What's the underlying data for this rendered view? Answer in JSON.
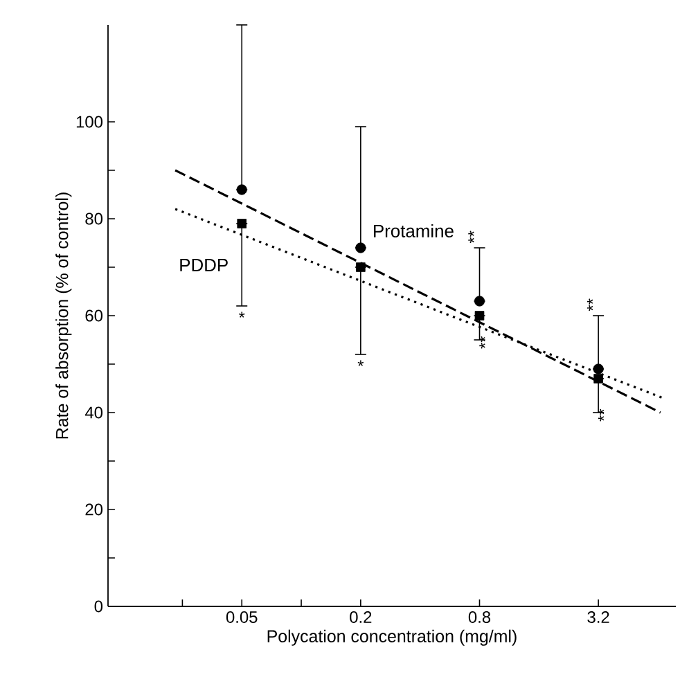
{
  "chart_data": {
    "type": "scatter",
    "xlabel": "Polycation concentration (mg/ml)",
    "ylabel": "Rate of absorption (% of control)",
    "log": "x",
    "xlim": [
      0.0105,
      7.9
    ],
    "ylim": [
      0,
      120
    ],
    "xticks": [
      {
        "value": 0.025,
        "label": null
      },
      0.05,
      {
        "value": 0.1,
        "label": null
      },
      0.2,
      0.8,
      3.2
    ],
    "yticks": [
      0,
      {
        "value": 10,
        "label": null
      },
      20,
      {
        "value": 30,
        "label": null
      },
      40,
      {
        "value": 50,
        "label": null
      },
      60,
      {
        "value": 70,
        "label": null
      },
      80,
      {
        "value": 90,
        "label": null
      },
      100
    ],
    "grid": false,
    "series": [
      {
        "name": "Protamine",
        "marker": "circle",
        "color": "#000000",
        "x": [
          0.05,
          0.2,
          0.8,
          3.2
        ],
        "values": [
          86,
          74,
          63,
          49
        ],
        "errors": [
          [
            86,
            120
          ],
          [
            74,
            99
          ],
          [
            63,
            74
          ],
          [
            49,
            60
          ]
        ]
      },
      {
        "name": "PDDP",
        "marker": "square",
        "color": "#000000",
        "x": [
          0.05,
          0.2,
          0.8,
          3.2
        ],
        "values": [
          79,
          70,
          60,
          47
        ],
        "errors": [
          [
            62,
            79
          ],
          [
            52,
            70
          ],
          [
            55,
            60
          ],
          [
            40,
            47
          ]
        ]
      },
      {
        "type": "line",
        "marker": "none",
        "line_style": "dashed",
        "color": "#000000",
        "x": [
          0.023,
          6.6
        ],
        "values": [
          90,
          40
        ]
      },
      {
        "type": "line",
        "marker": "none",
        "line_style": "dotted",
        "color": "#000000",
        "x": [
          0.023,
          6.8
        ],
        "values": [
          82,
          43
        ]
      }
    ],
    "annotations": [
      "*",
      "*",
      "**",
      "**",
      "**",
      "**"
    ]
  }
}
